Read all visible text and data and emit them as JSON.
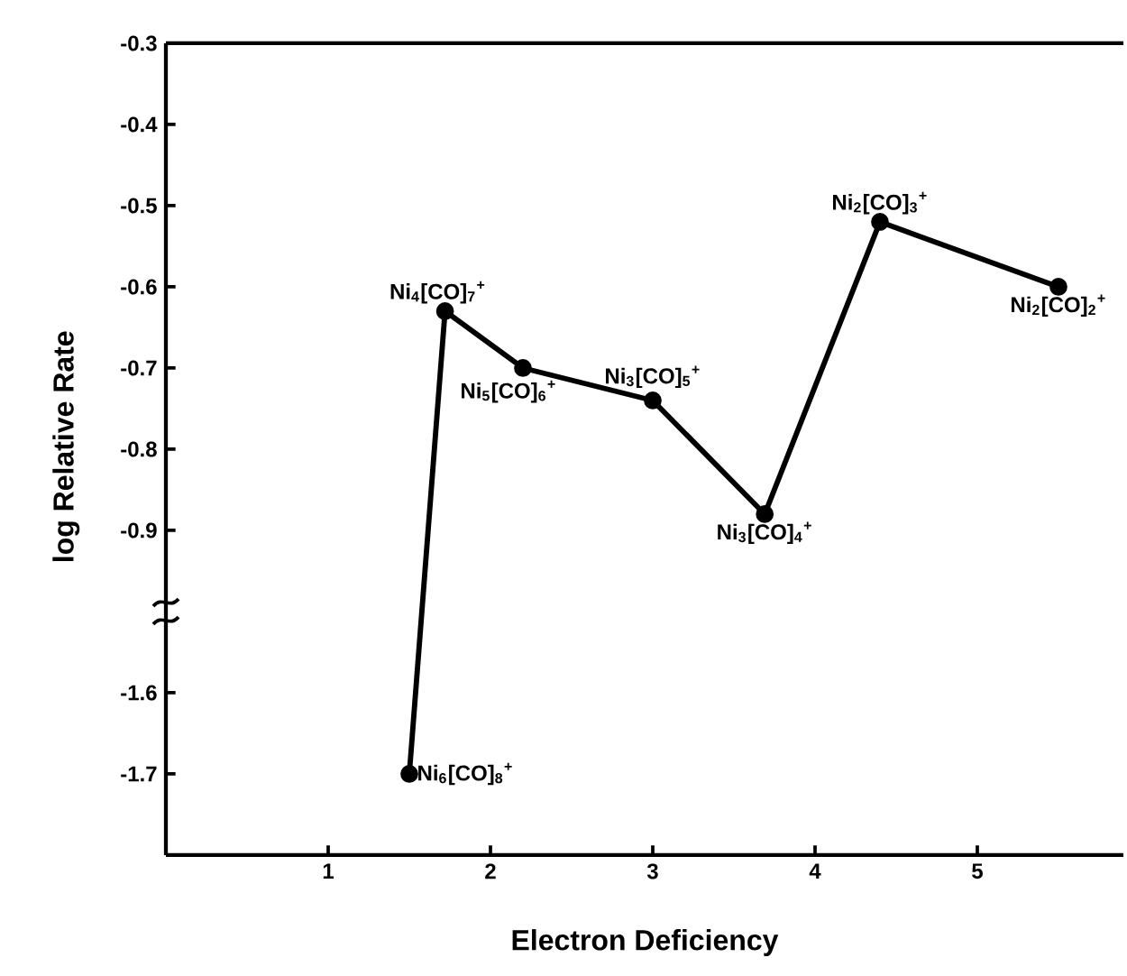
{
  "chart_data": [
    {
      "type": "line",
      "ylabel": "log Relative Rate",
      "x": [
        1.72,
        2.2,
        3.0,
        3.69,
        4.4,
        5.5
      ],
      "series": [
        {
          "color": "#000000",
          "values": [
            -0.63,
            -0.7,
            -0.74,
            -0.88,
            -0.52,
            -0.6
          ]
        }
      ],
      "xlim": [
        0,
        5.9
      ],
      "ylim": [
        -1.0,
        -0.3
      ],
      "yticks": [
        -0.3,
        -0.4,
        -0.5,
        -0.6,
        -0.7,
        -0.8,
        -0.9
      ],
      "tick_labels": "y",
      "marker": "circle",
      "annotations": [
        {
          "text": "Ni$_{4}$[CO]$_{7}$$^{+}$",
          "x": 1.72,
          "y": -0.63
        },
        {
          "text": "Ni$_{5}$[CO]$_{6}$$^{+}$",
          "x": 2.2,
          "y": -0.7
        },
        {
          "text": "Ni$_{3}$[CO]$_{5}$$^{+}$",
          "x": 3.0,
          "y": -0.74
        },
        {
          "text": "Ni$_{3}$[CO]$_{4}$$^{+}$",
          "x": 3.69,
          "y": -0.88
        },
        {
          "text": "Ni$_{2}$[CO]$_{3}$$^{+}$",
          "x": 4.4,
          "y": -0.52
        },
        {
          "text": "Ni$_{2}$[CO]$_{2}$$^{+}$",
          "x": 5.5,
          "y": -0.6
        }
      ]
    },
    {
      "type": "line",
      "xlabel": "Electron Deficiency",
      "x": [
        1.5
      ],
      "series": [
        {
          "color": "#000000",
          "values": [
            -1.7
          ]
        }
      ],
      "xlim": [
        0,
        5.9
      ],
      "ylim": [
        -1.8,
        -1.5
      ],
      "xticks": [
        1,
        2,
        3,
        4,
        5
      ],
      "yticks": [
        -1.6,
        -1.7
      ],
      "marker": "circle",
      "annotations": [
        {
          "text": "Ni$_{6}$[CO]$_{8}$$^{+}$",
          "x": 1.5,
          "y": -1.7
        }
      ]
    }
  ]
}
